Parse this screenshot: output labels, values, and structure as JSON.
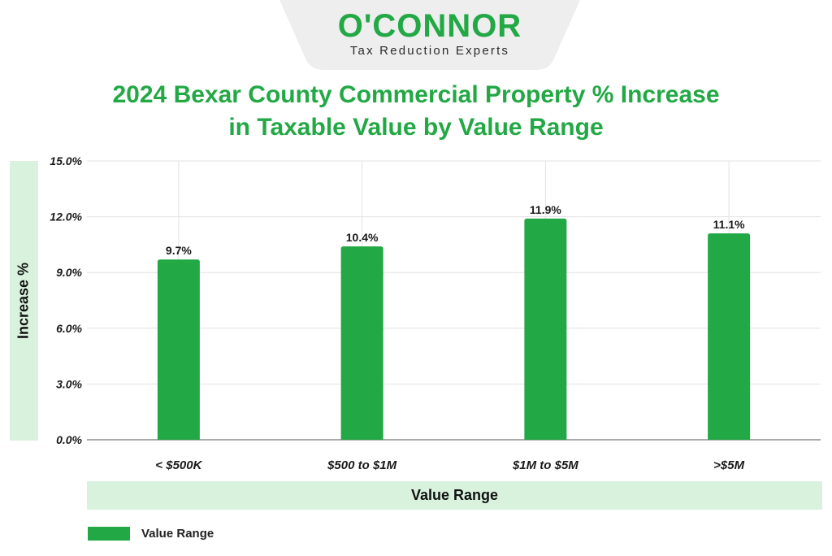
{
  "logo": {
    "wordmark": "O'CONNOR",
    "tagline": "Tax Reduction Experts"
  },
  "colors": {
    "brand_green": "#22a844",
    "axis_band": "#d9f2dd",
    "grid": "#e2e2e2",
    "text_dark": "#111111"
  },
  "chart_data": {
    "type": "bar",
    "title": "2024 Bexar County Commercial Property % Increase in Taxable Value by Value Range",
    "title_lines": [
      "2024 Bexar County Commercial Property % Increase",
      "in Taxable Value by Value Range"
    ],
    "xlabel": "Value Range",
    "ylabel": "Increase %",
    "categories": [
      "< $500K",
      "$500 to $1M",
      "$1M to $5M",
      ">$5M"
    ],
    "series": [
      {
        "name": "Value Range",
        "values": [
          9.7,
          10.4,
          11.9,
          11.1
        ],
        "data_labels": [
          "9.7%",
          "10.4%",
          "11.9%",
          "11.1%"
        ]
      }
    ],
    "ylim": [
      0,
      15
    ],
    "yticks": [
      0,
      3,
      6,
      9,
      12,
      15
    ],
    "ytick_labels": [
      "0.0%",
      "3.0%",
      "6.0%",
      "9.0%",
      "12.0%",
      "15.0%"
    ],
    "grid": true,
    "legend_position": "bottom-left"
  }
}
